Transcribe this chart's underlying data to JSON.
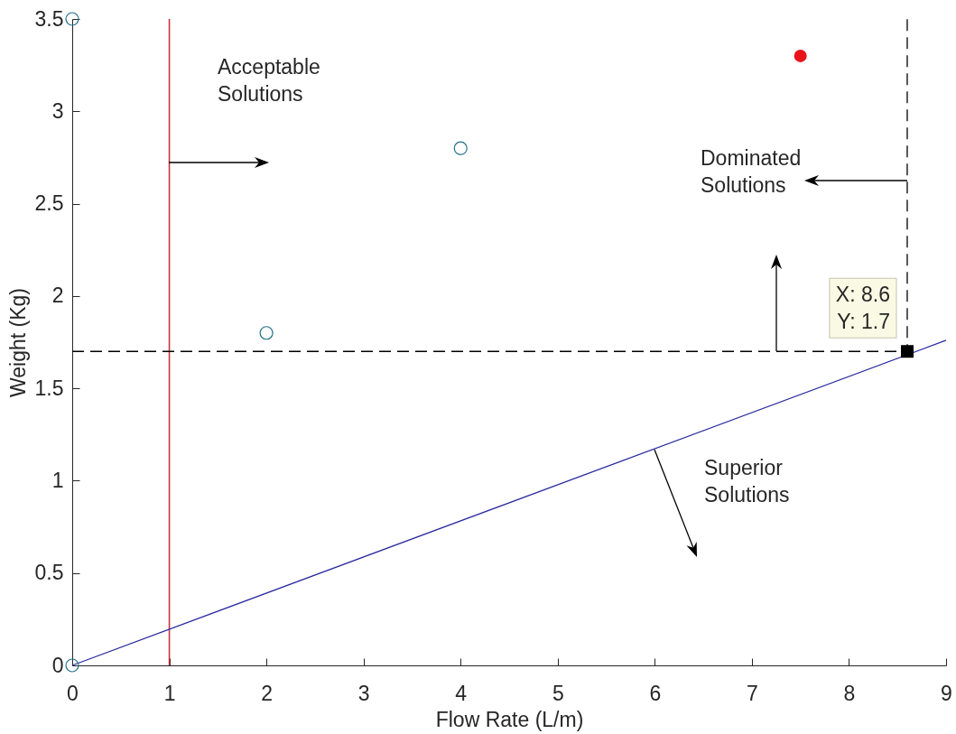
{
  "chart_data": {
    "type": "scatter",
    "xlabel": "Flow Rate (L/m)",
    "ylabel": "Weight (Kg)",
    "xlim": [
      0,
      9
    ],
    "ylim": [
      0,
      3.5
    ],
    "xticks": [
      0,
      1,
      2,
      3,
      4,
      5,
      6,
      7,
      8,
      9
    ],
    "yticks": [
      0,
      0.5,
      1,
      1.5,
      2,
      2.5,
      3,
      3.5
    ],
    "series": [
      {
        "type": "line",
        "color": "#2b2ba0",
        "x": [
          0,
          9
        ],
        "values": [
          0,
          1.76
        ]
      },
      {
        "type": "line",
        "color": "#000000",
        "x": [
          0,
          8.6,
          8.6
        ],
        "values": [
          1.7,
          1.7,
          3.5
        ],
        "line_style": "dashed"
      },
      {
        "color": "#23708a",
        "x": [
          0,
          0,
          2,
          4
        ],
        "values": [
          3.5,
          0,
          1.8,
          2.8
        ],
        "marker": "circle"
      },
      {
        "color": "#e8141a",
        "x": [
          7.5
        ],
        "values": [
          3.3
        ],
        "marker": "circle"
      },
      {
        "color": "#000000",
        "x": [
          8.6
        ],
        "values": [
          1.7
        ],
        "marker": "square"
      }
    ],
    "ref_lines": [
      {
        "axis": "x",
        "value": 1,
        "color": "#c8323c"
      }
    ],
    "annotations": [
      "Acceptable\nSolutions",
      "Dominated\nSolutions",
      "Superior\nSolutions",
      {
        "text": "X: 8.6\nY: 1.7",
        "x": 8.6,
        "y": 1.7
      }
    ]
  }
}
